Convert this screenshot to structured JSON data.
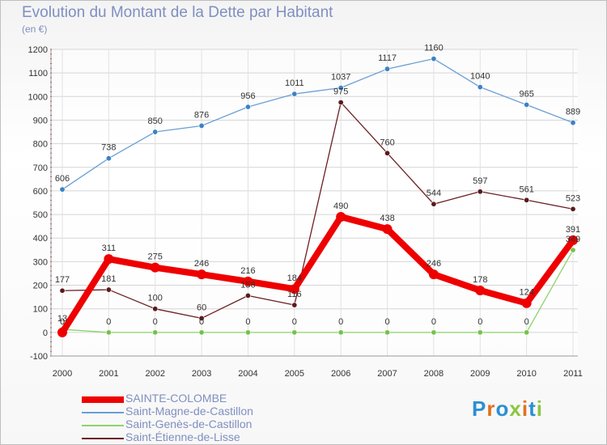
{
  "title": "Evolution du Montant de la Dette par Habitant",
  "subtitle": "(en €)",
  "logo": {
    "text": "Proxiti",
    "letter_colors": [
      "#2b8fd4",
      "#e2701d",
      "#2b8fd4",
      "#8cc63f",
      "#e2701d",
      "#2b8fd4",
      "#8cc63f"
    ]
  },
  "chart_data": {
    "type": "line",
    "title": "Evolution du Montant de la Dette par Habitant",
    "subtitle": "(en €)",
    "x": [
      "2000",
      "2001",
      "2002",
      "2003",
      "2004",
      "2005",
      "2006",
      "2007",
      "2008",
      "2009",
      "2010",
      "2011"
    ],
    "ylim": [
      -100,
      1200
    ],
    "yticks": [
      -100,
      0,
      100,
      200,
      300,
      400,
      500,
      600,
      700,
      800,
      900,
      1000,
      1100,
      1200
    ],
    "grid": true,
    "legend_position": "bottom-left",
    "series": [
      {
        "name": "SAINTE-COLOMBE",
        "color": "#ee0000",
        "values": [
          0,
          311,
          275,
          246,
          216,
          184,
          490,
          438,
          246,
          178,
          124,
          391
        ],
        "labels": [
          "0",
          "311",
          "275",
          "246",
          "216",
          "184",
          "490",
          "438",
          "246",
          "178",
          "124",
          "391"
        ]
      },
      {
        "name": "Saint-Magne-de-Castillon",
        "color": "#6a9fd4",
        "values": [
          606,
          738,
          850,
          876,
          956,
          1011,
          1037,
          1117,
          1160,
          1040,
          965,
          889
        ],
        "labels": [
          "606",
          "738",
          "850",
          "876",
          "956",
          "1011",
          "1037",
          "1117",
          "1160",
          "1040",
          "965",
          "889"
        ]
      },
      {
        "name": "Saint-Genès-de-Castillon",
        "color": "#8cd46a",
        "values": [
          13,
          0,
          0,
          0,
          0,
          0,
          0,
          0,
          0,
          0,
          0,
          349
        ],
        "labels": [
          "13",
          "0",
          "0",
          "0",
          "0",
          "0",
          "0",
          "0",
          "0",
          "0",
          "0",
          "349"
        ]
      },
      {
        "name": "Saint-Étienne-de-Lisse",
        "color": "#6b1f23",
        "values": [
          177,
          181,
          100,
          60,
          156,
          116,
          975,
          760,
          544,
          597,
          561,
          523
        ],
        "labels": [
          "177",
          "181",
          "100",
          "60",
          "156",
          "116",
          "975",
          "760",
          "544",
          "597",
          "561",
          "523"
        ]
      }
    ]
  }
}
